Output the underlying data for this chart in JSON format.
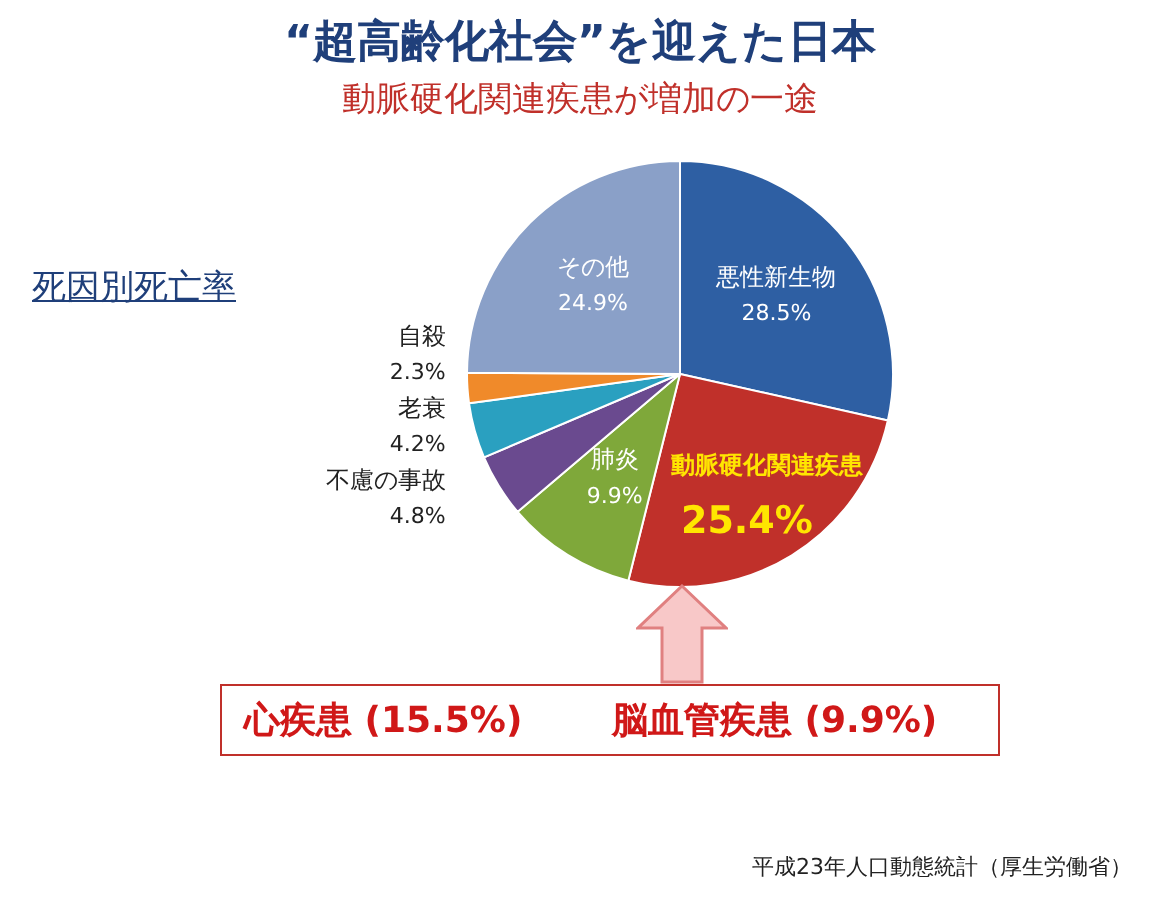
{
  "chart_data": {
    "type": "pie",
    "title": "“超高齢化社会”を迎えた日本",
    "subtitle": "動脈硬化関連疾患が増加の一途",
    "categories": [
      "悪性新生物",
      "動脈硬化関連疾患",
      "肺炎",
      "不慮の事故",
      "老衰",
      "自殺",
      "その他"
    ],
    "values": [
      28.5,
      25.4,
      9.9,
      4.8,
      4.2,
      2.3,
      24.9
    ],
    "value_labels": [
      "28.5%",
      "25.4%",
      "9.9%",
      "4.8%",
      "4.2%",
      "2.3%",
      "24.9%"
    ],
    "colors": [
      "#2e5fa3",
      "#c0302a",
      "#7fa83a",
      "#6a4a8f",
      "#2aa0c0",
      "#f08a2a",
      "#8aa0c8"
    ],
    "legend": false,
    "annotations": [
      "死因別死亡率",
      "心疾患 (15.5%)",
      "脳血管疾患 (9.9%)",
      "平成23年人口動態統計（厚生労働省）"
    ]
  }
}
